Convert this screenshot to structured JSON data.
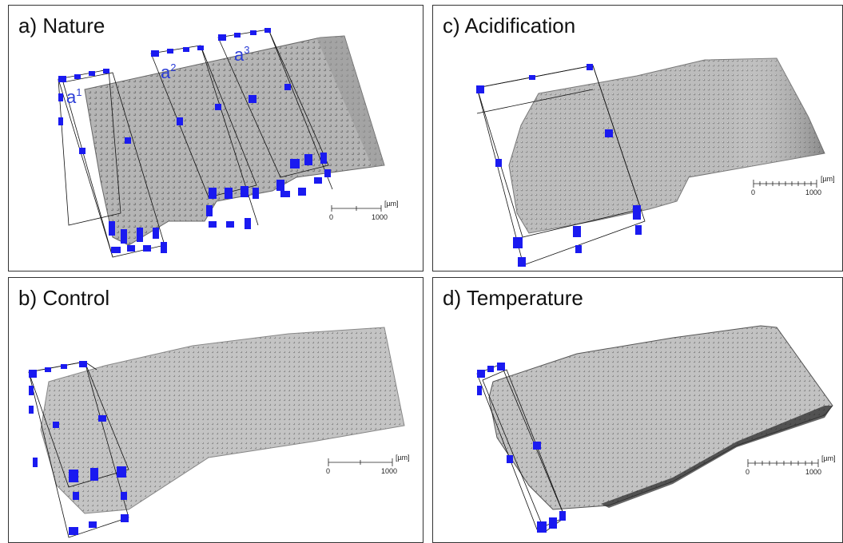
{
  "panels": {
    "a": {
      "title": "a) Nature",
      "regions": [
        "a",
        "a",
        "a"
      ],
      "superscripts": [
        "1",
        "2",
        "3"
      ]
    },
    "b": {
      "title": "b) Control"
    },
    "c": {
      "title": "c) Acidification"
    },
    "d": {
      "title": "d) Temperature"
    }
  },
  "scale_bar": {
    "unit": "[µm]",
    "start": "0",
    "end": "1000"
  },
  "colors": {
    "selection_box": "#1a1af0",
    "surface": "#b8b8b8",
    "frame": "#333333"
  }
}
